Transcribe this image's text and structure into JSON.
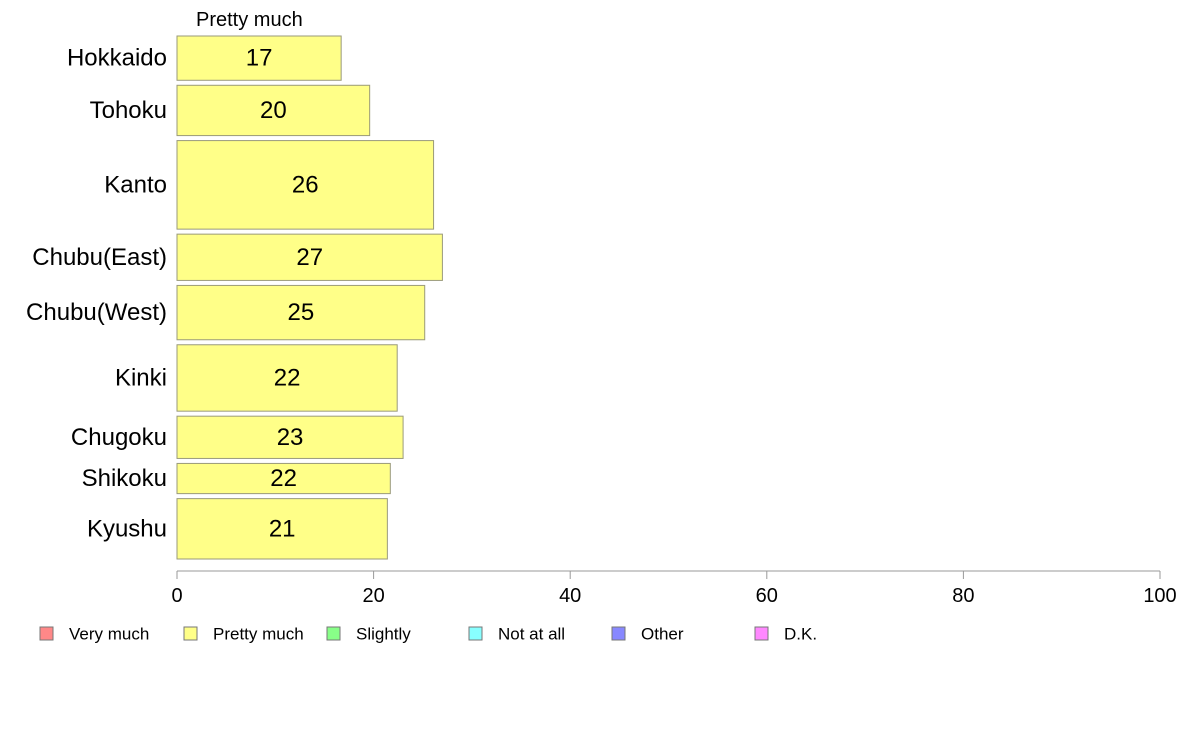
{
  "chart_data": {
    "type": "bar",
    "orientation": "horizontal",
    "series_heading": "Pretty much",
    "categories": [
      "Hokkaido",
      "Tohoku",
      "Kanto",
      "Chubu(East)",
      "Chubu(West)",
      "Kinki",
      "Chugoku",
      "Shikoku",
      "Kyushu"
    ],
    "series": [
      {
        "name": "Pretty much",
        "color": "#ffff88",
        "values": [
          16.7,
          19.6,
          26.1,
          27.0,
          25.2,
          22.4,
          23.0,
          21.7,
          21.4
        ],
        "labels": [
          "17",
          "20",
          "26",
          "27",
          "25",
          "22",
          "23",
          "22",
          "21"
        ]
      }
    ],
    "relative_bar_widths": [
      44,
      50,
      88,
      46,
      54,
      66,
      42,
      30,
      60
    ],
    "xlim": [
      0,
      100
    ],
    "xticks": [
      0,
      20,
      40,
      60,
      80,
      100
    ],
    "grid": false,
    "legend_position": "bottom",
    "legend": [
      {
        "label": "Very much",
        "color": "#ff8888"
      },
      {
        "label": "Pretty much",
        "color": "#ffff88"
      },
      {
        "label": "Slightly",
        "color": "#88ff88"
      },
      {
        "label": "Not at all",
        "color": "#88ffff"
      },
      {
        "label": "Other",
        "color": "#8888ff"
      },
      {
        "label": "D.K.",
        "color": "#ff88ff"
      }
    ]
  }
}
